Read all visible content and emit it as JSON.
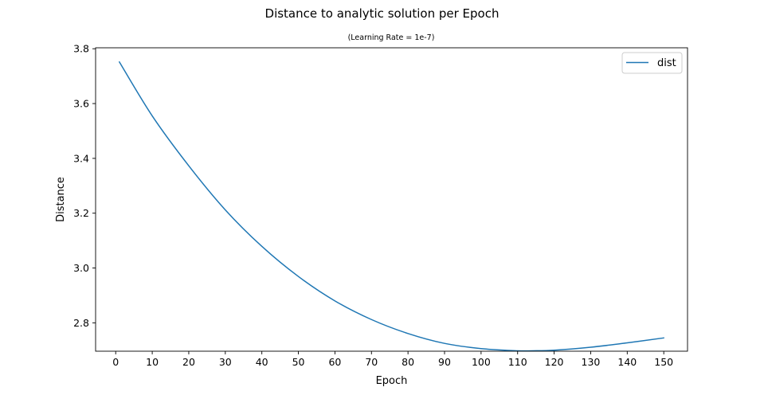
{
  "chart_data": {
    "type": "line",
    "title": "Distance to analytic solution per Epoch",
    "subtitle": "(Learning Rate = 1e-7)",
    "xlabel": "Epoch",
    "ylabel": "Distance",
    "xlim": [
      -5.5,
      156.5
    ],
    "ylim": [
      2.6965,
      3.8035
    ],
    "xticks": [
      0,
      10,
      20,
      30,
      40,
      50,
      60,
      70,
      80,
      90,
      100,
      110,
      120,
      130,
      140,
      150
    ],
    "yticks": [
      2.8,
      3.0,
      3.2,
      3.4,
      3.6,
      3.8
    ],
    "ytick_labels": [
      "2.8",
      "3.0",
      "3.2",
      "3.4",
      "3.6",
      "3.8"
    ],
    "grid": false,
    "legend_position": "top-right",
    "series": [
      {
        "name": "dist",
        "color": "#1f77b4",
        "x": [
          1,
          10,
          20,
          30,
          40,
          50,
          60,
          70,
          80,
          90,
          100,
          110,
          114,
          120,
          130,
          140,
          150
        ],
        "y": [
          3.752,
          3.555,
          3.373,
          3.212,
          3.079,
          2.969,
          2.88,
          2.812,
          2.761,
          2.725,
          2.706,
          2.698,
          2.698,
          2.7,
          2.711,
          2.727,
          2.745
        ]
      }
    ]
  }
}
